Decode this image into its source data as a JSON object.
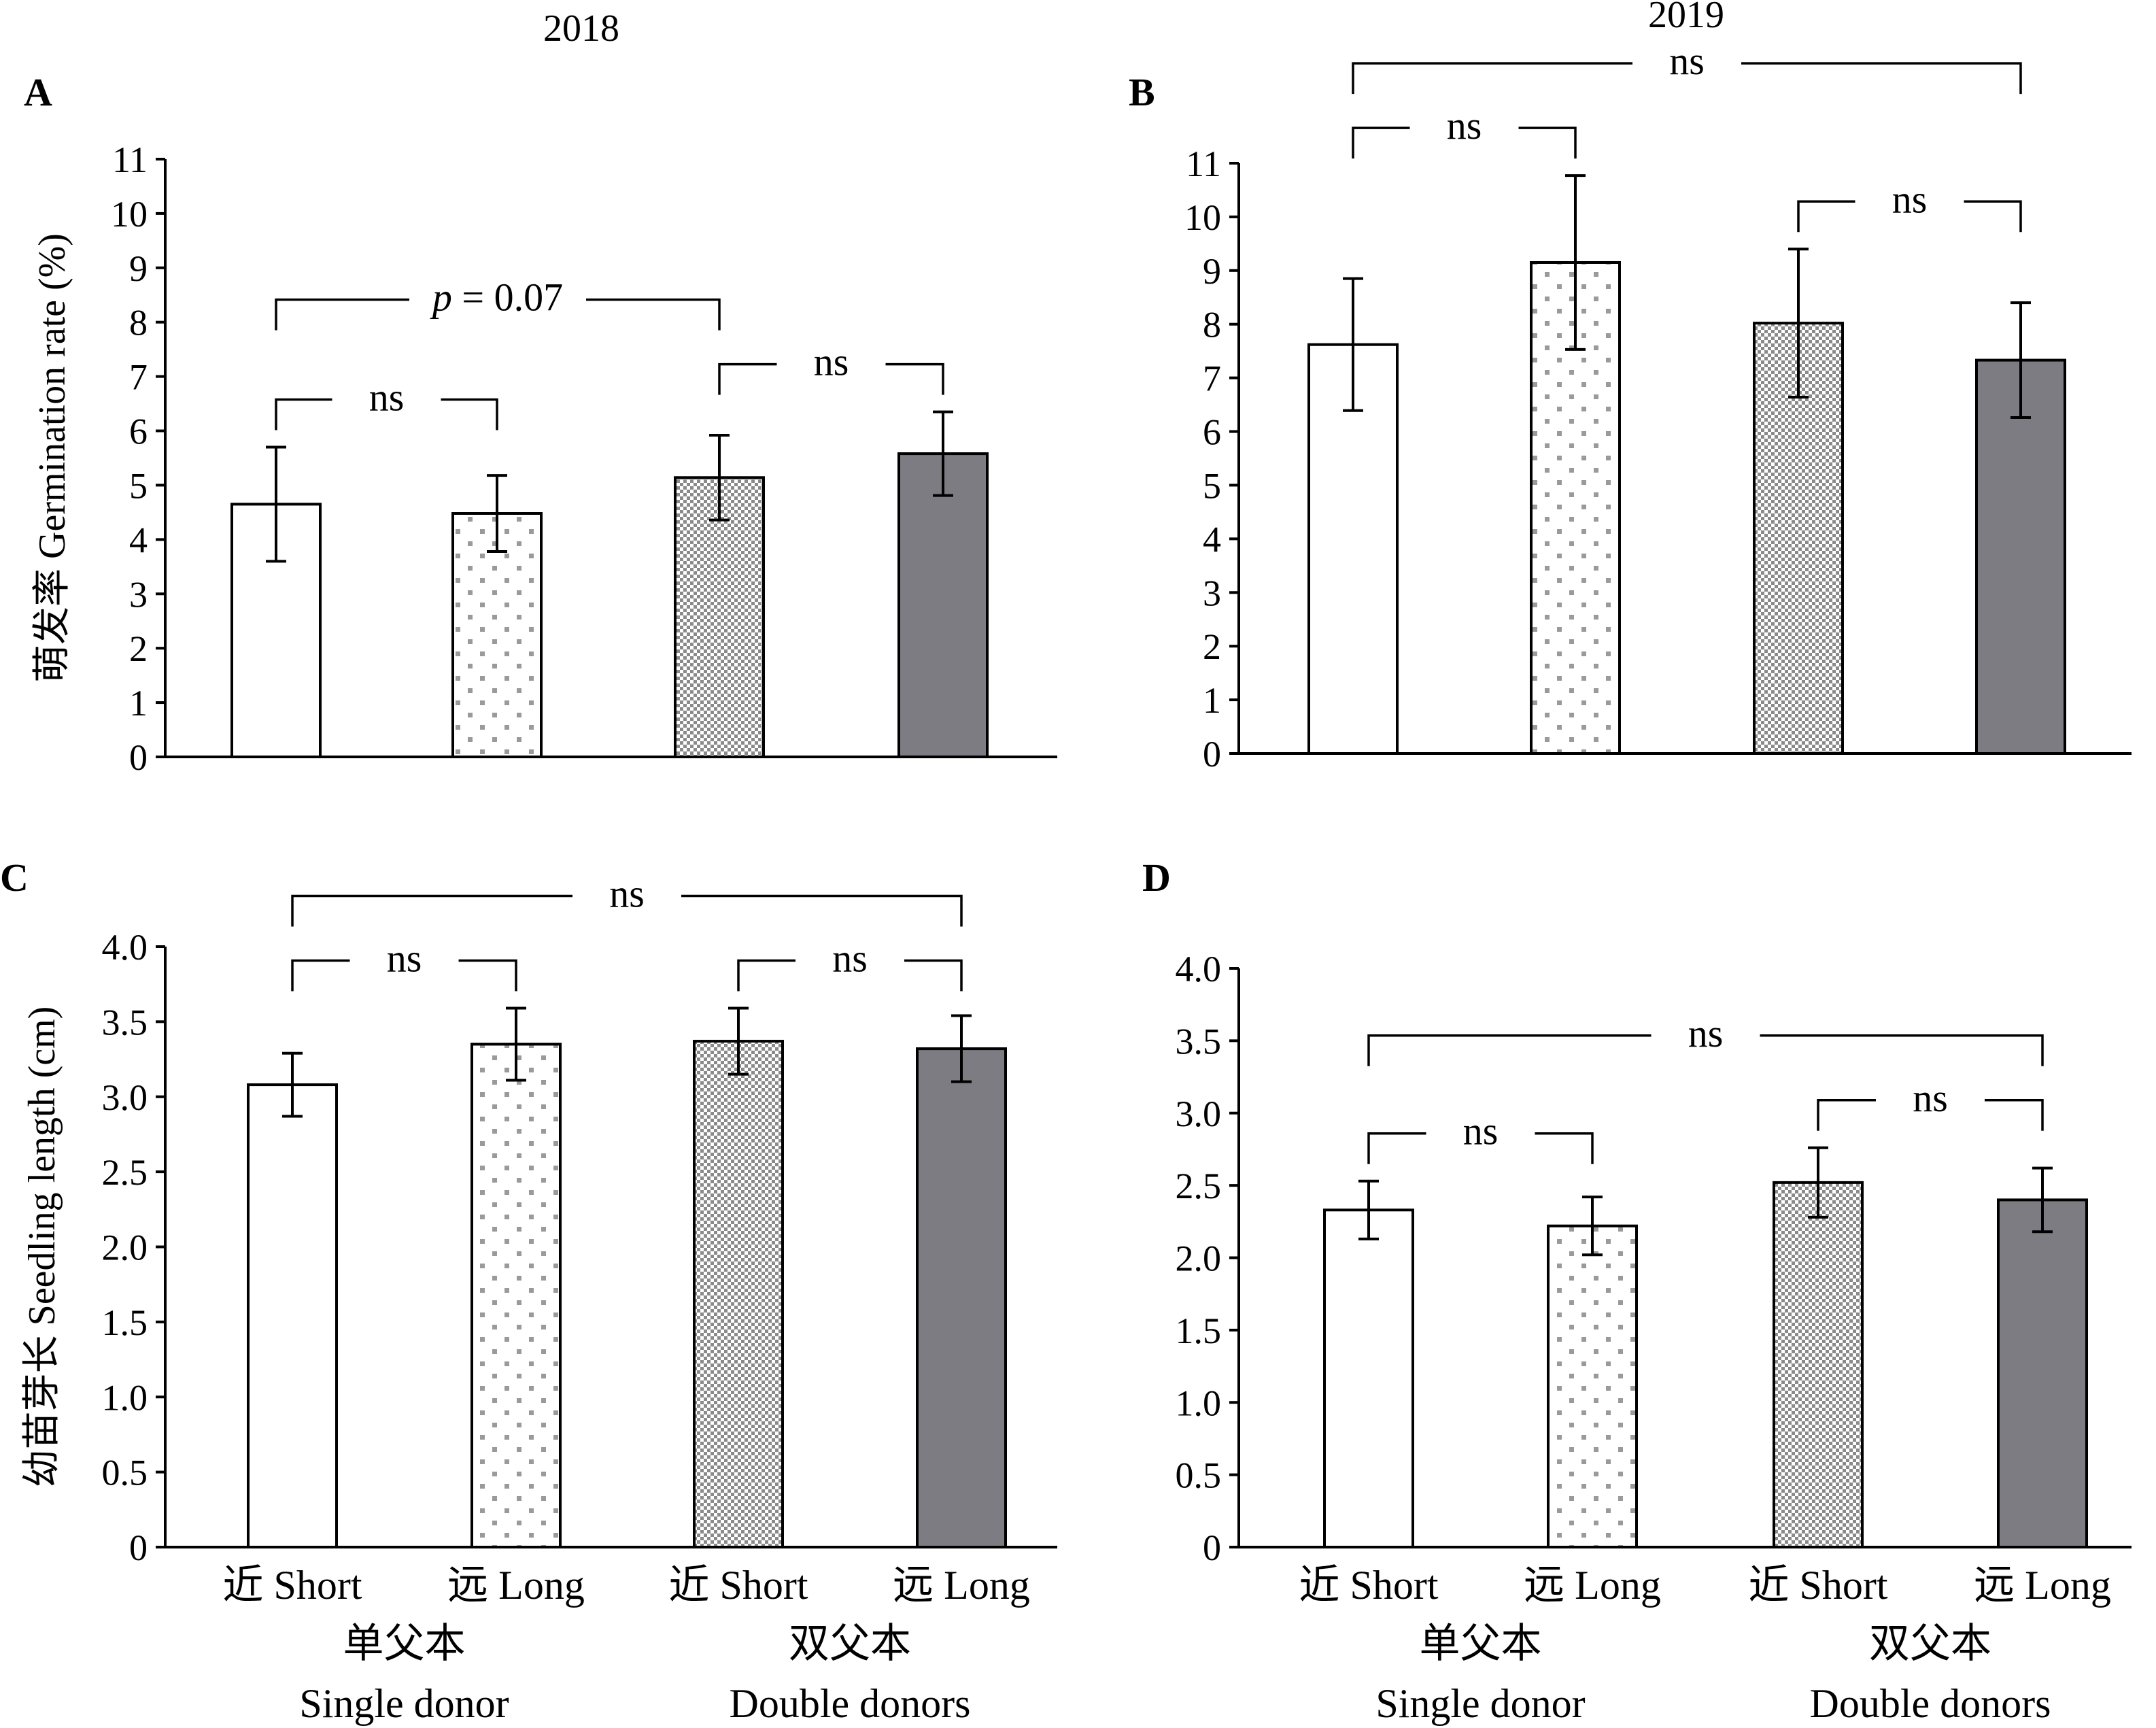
{
  "chart_data": [
    {
      "type": "bar",
      "panel": "A",
      "title": "2018",
      "ylabel": "萌发率 Germination rate (%)",
      "ylim": [
        0,
        11
      ],
      "yticks": [
        "0",
        "1",
        "2",
        "3",
        "4",
        "5",
        "6",
        "7",
        "8",
        "9",
        "10",
        "11"
      ],
      "categories": [
        "",
        "",
        "",
        ""
      ],
      "values": [
        4.65,
        4.48,
        5.14,
        5.58
      ],
      "errors": [
        1.05,
        0.7,
        0.78,
        0.77
      ],
      "fills": [
        "white",
        "dots",
        "checker",
        "dark"
      ],
      "annotations": [
        {
          "from": 0,
          "to": 1,
          "text": "ns",
          "level": "low"
        },
        {
          "from": 2,
          "to": 3,
          "text": "ns",
          "level": "low"
        },
        {
          "from": 0,
          "to": 2,
          "text": "p = 0.07",
          "level": "high"
        }
      ]
    },
    {
      "type": "bar",
      "panel": "B",
      "title": "2019",
      "ylabel": "",
      "ylim": [
        0,
        11
      ],
      "yticks": [
        "0",
        "1",
        "2",
        "3",
        "4",
        "5",
        "6",
        "7",
        "8",
        "9",
        "10",
        "11"
      ],
      "categories": [
        "",
        "",
        "",
        ""
      ],
      "values": [
        7.62,
        9.15,
        8.02,
        7.33
      ],
      "errors": [
        1.23,
        1.62,
        1.38,
        1.07
      ],
      "fills": [
        "white",
        "dots",
        "checker",
        "dark"
      ],
      "annotations": [
        {
          "from": 0,
          "to": 1,
          "text": "ns",
          "level": "low"
        },
        {
          "from": 2,
          "to": 3,
          "text": "ns",
          "level": "low"
        },
        {
          "from": 0,
          "to": 3,
          "text": "ns",
          "level": "high"
        }
      ]
    },
    {
      "type": "bar",
      "panel": "C",
      "title": "",
      "ylabel": "幼苗芽长 Seedling length (cm)",
      "ylim": [
        0,
        4.0
      ],
      "yticks": [
        "0",
        "0.5",
        "1.0",
        "1.5",
        "2.0",
        "2.5",
        "3.0",
        "3.5",
        "4.0"
      ],
      "categories": [
        "近 Short",
        "远 Long",
        "近 Short",
        "远 Long"
      ],
      "groups": [
        {
          "name_cn": "单父本",
          "name_en": "Single donor"
        },
        {
          "name_cn": "双父本",
          "name_en": "Double donors"
        }
      ],
      "values": [
        3.08,
        3.35,
        3.37,
        3.32
      ],
      "errors": [
        0.21,
        0.24,
        0.22,
        0.22
      ],
      "fills": [
        "white",
        "dots",
        "checker",
        "dark"
      ],
      "annotations": [
        {
          "from": 0,
          "to": 1,
          "text": "ns",
          "level": "low"
        },
        {
          "from": 2,
          "to": 3,
          "text": "ns",
          "level": "low"
        },
        {
          "from": 0,
          "to": 3,
          "text": "ns",
          "level": "high"
        }
      ]
    },
    {
      "type": "bar",
      "panel": "D",
      "title": "",
      "ylabel": "",
      "ylim": [
        0,
        4.0
      ],
      "yticks": [
        "0",
        "0.5",
        "1.0",
        "1.5",
        "2.0",
        "2.5",
        "3.0",
        "3.5",
        "4.0"
      ],
      "categories": [
        "近 Short",
        "远 Long",
        "近 Short",
        "远 Long"
      ],
      "groups": [
        {
          "name_cn": "单父本",
          "name_en": "Single donor"
        },
        {
          "name_cn": "双父本",
          "name_en": "Double donors"
        }
      ],
      "values": [
        2.33,
        2.22,
        2.52,
        2.4
      ],
      "errors": [
        0.2,
        0.2,
        0.24,
        0.22
      ],
      "fills": [
        "white",
        "dots",
        "checker",
        "dark"
      ],
      "annotations": [
        {
          "from": 0,
          "to": 1,
          "text": "ns",
          "level": "low"
        },
        {
          "from": 2,
          "to": 3,
          "text": "ns",
          "level": "low"
        },
        {
          "from": 0,
          "to": 3,
          "text": "ns",
          "level": "high"
        }
      ]
    }
  ],
  "colors": {
    "dark_bar": "#7d7c82",
    "pattern": "#8a8a8a",
    "axis": "#000000"
  }
}
